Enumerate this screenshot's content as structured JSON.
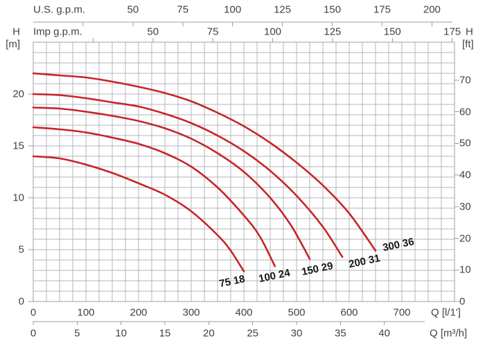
{
  "chart_data": {
    "type": "line",
    "title": "Pump performance curves (head vs. flow)",
    "grid": true,
    "legend": "none",
    "curve_color": "#c8232a",
    "grid_color": "#b3b6b9",
    "axis_color": "#989c9f",
    "text_color": "#3f4245",
    "curve_label_color": "#161718",
    "axes": {
      "top_primary": {
        "title": "U.S. g.p.m.",
        "tick_values": [
          25,
          50,
          75,
          100,
          125,
          150,
          175,
          200
        ],
        "labeled_ticks": [
          50,
          75,
          100,
          125,
          150,
          175,
          200
        ]
      },
      "top_secondary": {
        "title": "Imp g.p.m.",
        "tick_values": [
          25,
          50,
          75,
          100,
          125,
          150,
          175
        ],
        "labeled_ticks": [
          50,
          75,
          100,
          125,
          150,
          175
        ]
      },
      "left": {
        "title": "H",
        "unit": "[m]",
        "labeled_ticks": [
          0,
          5,
          10,
          15,
          20
        ],
        "range": [
          0,
          25
        ],
        "grid_step": 1
      },
      "right": {
        "title": "H",
        "unit": "[ft]",
        "labeled_ticks": [
          0,
          10,
          20,
          30,
          40,
          50,
          60,
          70
        ]
      },
      "bottom_primary": {
        "title": "Q [l/1']",
        "labeled_ticks": [
          0,
          100,
          200,
          300,
          400,
          500,
          600,
          700
        ],
        "range": [
          0,
          800
        ],
        "grid_step": 25
      },
      "bottom_secondary": {
        "title": "Q [m³/h]",
        "labeled_ticks": [
          0,
          5,
          10,
          15,
          20,
          25,
          30,
          35,
          40
        ]
      }
    },
    "series": [
      {
        "label": "75 18",
        "points_q_lmin_h_m": [
          [
            0,
            14.0
          ],
          [
            50,
            13.8
          ],
          [
            100,
            13.2
          ],
          [
            150,
            12.4
          ],
          [
            200,
            11.4
          ],
          [
            250,
            10.3
          ],
          [
            300,
            8.7
          ],
          [
            350,
            6.4
          ],
          [
            375,
            4.9
          ],
          [
            400,
            2.9
          ]
        ]
      },
      {
        "label": "100 24",
        "points_q_lmin_h_m": [
          [
            0,
            16.8
          ],
          [
            50,
            16.6
          ],
          [
            100,
            16.3
          ],
          [
            150,
            15.8
          ],
          [
            200,
            15.2
          ],
          [
            250,
            14.3
          ],
          [
            300,
            13.0
          ],
          [
            350,
            11.0
          ],
          [
            400,
            8.3
          ],
          [
            430,
            6.3
          ],
          [
            459,
            3.4
          ]
        ]
      },
      {
        "label": "150 29",
        "points_q_lmin_h_m": [
          [
            0,
            18.7
          ],
          [
            50,
            18.6
          ],
          [
            100,
            18.3
          ],
          [
            150,
            17.9
          ],
          [
            200,
            17.4
          ],
          [
            250,
            16.7
          ],
          [
            300,
            15.7
          ],
          [
            350,
            14.3
          ],
          [
            400,
            12.5
          ],
          [
            450,
            10.0
          ],
          [
            490,
            7.3
          ],
          [
            525,
            4.1
          ]
        ]
      },
      {
        "label": "200 31",
        "points_q_lmin_h_m": [
          [
            0,
            20.0
          ],
          [
            50,
            19.9
          ],
          [
            100,
            19.6
          ],
          [
            150,
            19.2
          ],
          [
            200,
            18.8
          ],
          [
            250,
            18.1
          ],
          [
            300,
            17.2
          ],
          [
            350,
            16.0
          ],
          [
            400,
            14.5
          ],
          [
            450,
            12.6
          ],
          [
            500,
            10.2
          ],
          [
            550,
            7.2
          ],
          [
            587,
            4.3
          ]
        ]
      },
      {
        "label": "300 36",
        "points_q_lmin_h_m": [
          [
            0,
            22.0
          ],
          [
            50,
            21.8
          ],
          [
            100,
            21.6
          ],
          [
            150,
            21.2
          ],
          [
            200,
            20.7
          ],
          [
            250,
            20.1
          ],
          [
            300,
            19.3
          ],
          [
            350,
            18.2
          ],
          [
            400,
            16.9
          ],
          [
            450,
            15.3
          ],
          [
            500,
            13.4
          ],
          [
            550,
            11.2
          ],
          [
            600,
            8.5
          ],
          [
            650,
            4.9
          ]
        ]
      }
    ]
  }
}
